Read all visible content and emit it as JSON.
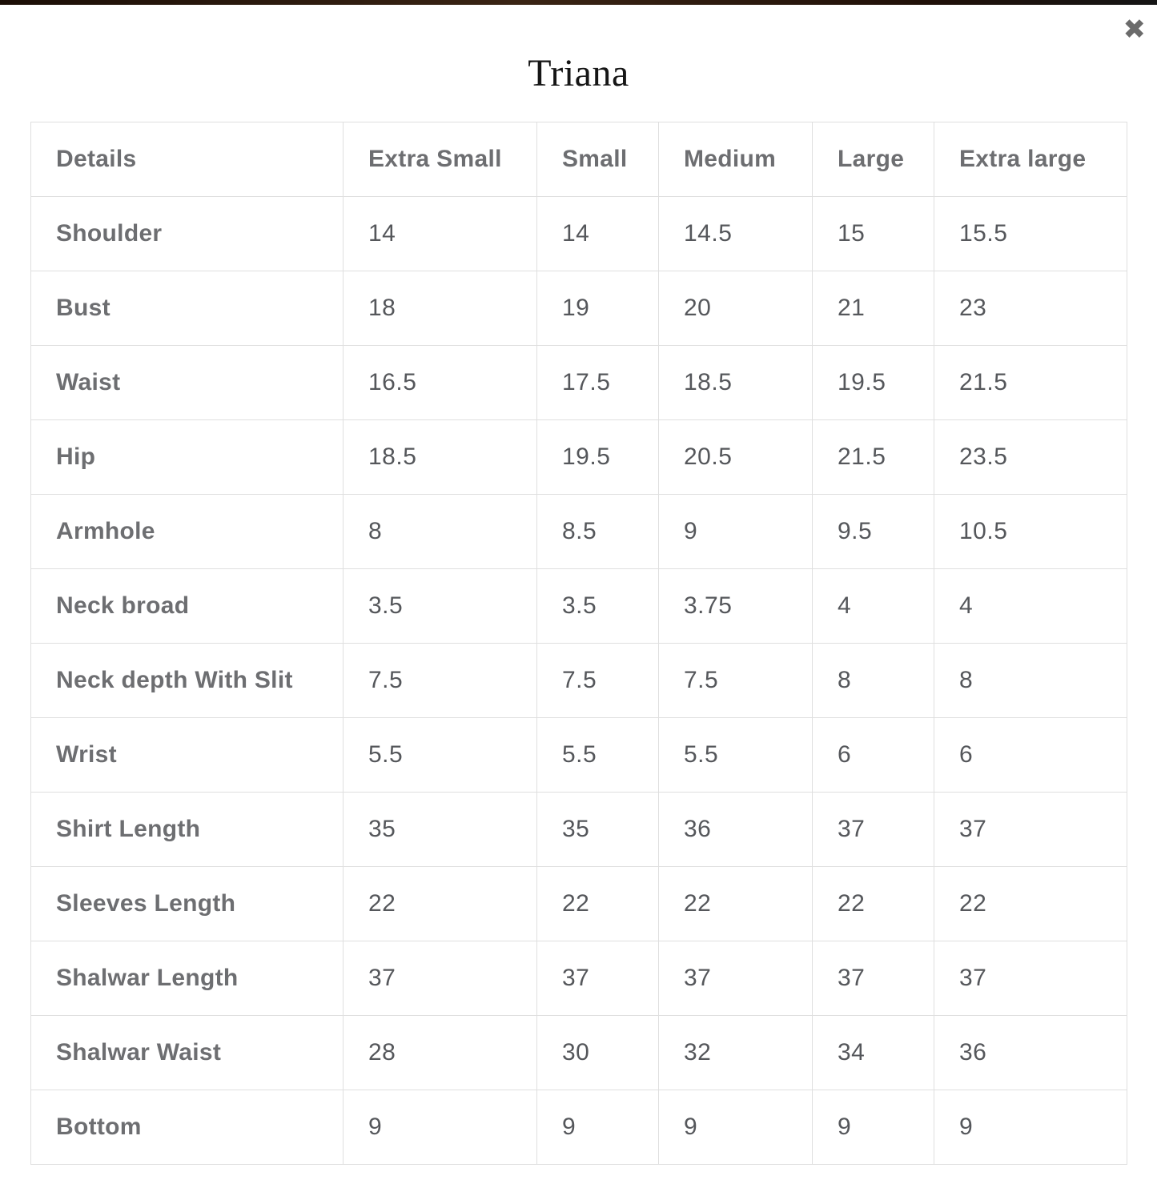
{
  "modal": {
    "title": "Triana",
    "close_icon_glyph": "✖"
  },
  "table": {
    "columns": [
      "Details",
      "Extra Small",
      "Small",
      "Medium",
      "Large",
      "Extra large"
    ],
    "rows": [
      {
        "label": "Shoulder",
        "values": [
          "14",
          "14",
          "14.5",
          "15",
          "15.5"
        ]
      },
      {
        "label": "Bust",
        "values": [
          "18",
          "19",
          "20",
          "21",
          "23"
        ]
      },
      {
        "label": "Waist",
        "values": [
          "16.5",
          "17.5",
          "18.5",
          "19.5",
          "21.5"
        ]
      },
      {
        "label": "Hip",
        "values": [
          "18.5",
          "19.5",
          "20.5",
          "21.5",
          "23.5"
        ]
      },
      {
        "label": "Armhole",
        "values": [
          "8",
          "8.5",
          "9",
          "9.5",
          "10.5"
        ]
      },
      {
        "label": "Neck broad",
        "values": [
          "3.5",
          "3.5",
          "3.75",
          "4",
          "4"
        ]
      },
      {
        "label": "Neck depth With Slit",
        "values": [
          "7.5",
          "7.5",
          "7.5",
          "8",
          "8"
        ]
      },
      {
        "label": "Wrist",
        "values": [
          "5.5",
          "5.5",
          "5.5",
          "6",
          "6"
        ]
      },
      {
        "label": "Shirt Length",
        "values": [
          "35",
          "35",
          "36",
          "37",
          "37"
        ]
      },
      {
        "label": "Sleeves Length",
        "values": [
          "22",
          "22",
          "22",
          "22",
          "22"
        ]
      },
      {
        "label": "Shalwar Length",
        "values": [
          "37",
          "37",
          "37",
          "37",
          "37"
        ]
      },
      {
        "label": "Shalwar Waist",
        "values": [
          "28",
          "30",
          "32",
          "34",
          "36"
        ]
      },
      {
        "label": "Bottom",
        "values": [
          "9",
          "9",
          "9",
          "9",
          "9"
        ]
      }
    ]
  },
  "colors": {
    "top_strip": "#2a1a0e",
    "table_border": "#dfdfdf",
    "heading_text": "#6d6e71",
    "value_text": "#55575b",
    "title_text": "#161616",
    "close_icon": "#6b6b6b"
  }
}
